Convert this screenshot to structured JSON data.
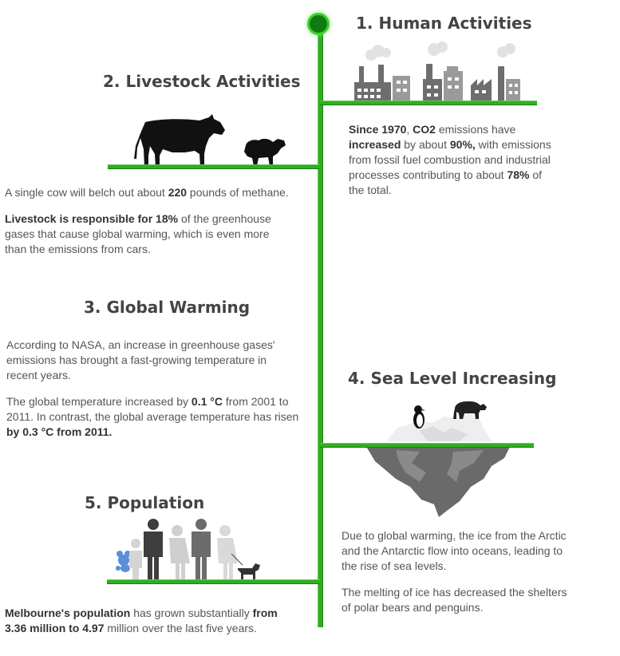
{
  "sections": [
    {
      "title": "1. Human Activities",
      "paragraphs": [
        [
          {
            "t": "Since 1970",
            "b": true
          },
          {
            "t": ", ",
            "b": false
          },
          {
            "t": "CO2",
            "b": true
          },
          {
            "t": " emissions have ",
            "b": false
          },
          {
            "t": "increased",
            "b": true
          },
          {
            "t": " by about ",
            "b": false
          },
          {
            "t": "90%,",
            "b": true
          },
          {
            "t": " with emissions from fossil fuel combustion and industrial processes contributing to about ",
            "b": false
          },
          {
            "t": "78%",
            "b": true
          },
          {
            "t": " of the total.",
            "b": false
          }
        ]
      ]
    },
    {
      "title": "2. Livestock Activities",
      "paragraphs": [
        [
          {
            "t": "A single cow will belch out about ",
            "b": false
          },
          {
            "t": "220",
            "b": true
          },
          {
            "t": " pounds of methane.",
            "b": false
          }
        ],
        [
          {
            "t": "Livestock is responsible for 18%",
            "b": true
          },
          {
            "t": " of the greenhouse gases that cause global warming, which is even more than the emissions from cars.",
            "b": false
          }
        ]
      ]
    },
    {
      "title": "3. Global Warming",
      "paragraphs": [
        [
          {
            "t": "According to NASA, an increase in greenhouse gases' emissions has brought a fast-growing temperature in recent years.",
            "b": false
          }
        ],
        [
          {
            "t": " The global temperature increased by ",
            "b": false
          },
          {
            "t": "0.1  °C",
            "b": true
          },
          {
            "t": " from 2001 to 2011. In contrast, the global average temperature has risen ",
            "b": false
          },
          {
            "t": "by 0.3  °C from 2011.",
            "b": true
          }
        ]
      ]
    },
    {
      "title": "4. Sea Level Increasing",
      "paragraphs": [
        [
          {
            "t": "Due to global warming, the ice from the Arctic and the Antarctic flow into oceans, leading to the rise of sea levels.",
            "b": false
          }
        ],
        [
          {
            "t": "The melting of ice has decreased the shelters of polar bears and penguins.",
            "b": false
          }
        ]
      ]
    },
    {
      "title": "5. Population",
      "paragraphs": [
        [
          {
            "t": "Melbourne's population",
            "b": true
          },
          {
            "t": " has grown substantially ",
            "b": false
          },
          {
            "t": "from 3.36 million to 4.97",
            "b": true
          },
          {
            "t": " million over the last five years.",
            "b": false
          }
        ]
      ]
    }
  ],
  "icons": {
    "factory": "factory-icon",
    "cow": "cow-icon",
    "sheep": "sheep-icon",
    "iceberg": "iceberg-icon",
    "penguin": "penguin-icon",
    "polar_bear": "polar-bear-icon",
    "family": "family-icon",
    "dog": "dog-icon",
    "teddy": "teddy-bear-icon"
  },
  "colors": {
    "timeline": "#2fae22",
    "node": "#0f7a12",
    "heading": "#444444",
    "body_text": "#555555"
  }
}
